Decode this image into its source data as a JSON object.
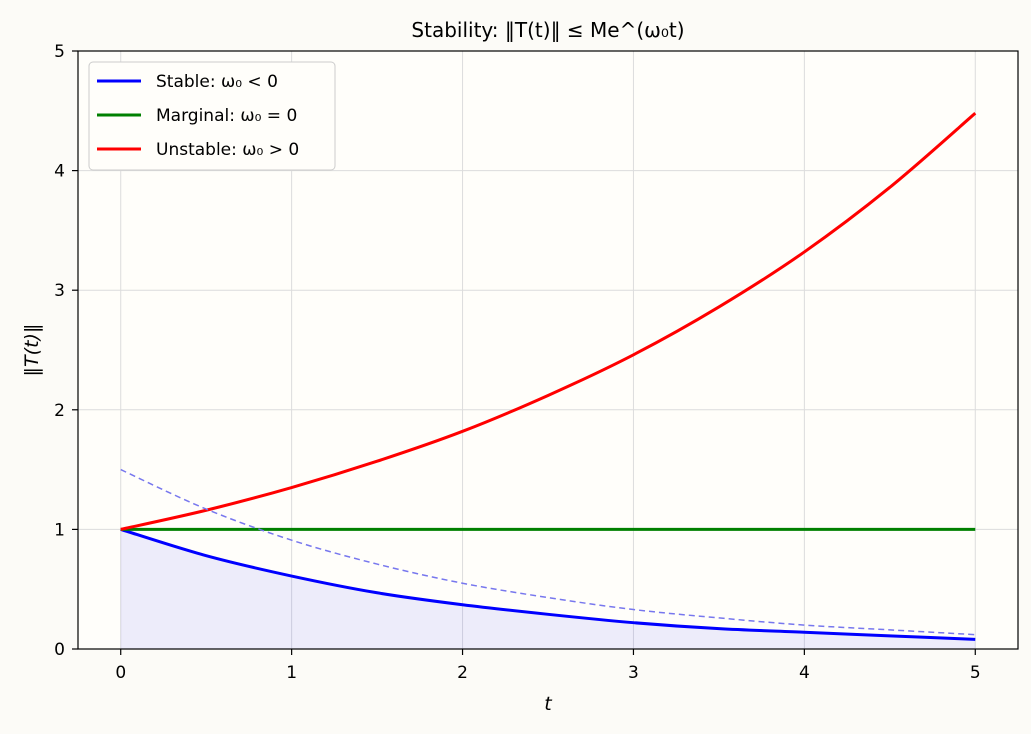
{
  "title": "Stability: ‖T(t)‖ ≤ Me^(ω₀t)",
  "chart_data": {
    "type": "line",
    "title": "Stability: ‖T(t)‖ ≤ Me^(ω₀t)",
    "xlabel": "t",
    "ylabel": "‖T(t)‖",
    "xlim": [
      -0.25,
      5.25
    ],
    "ylim": [
      0,
      5
    ],
    "xticks": [
      "0",
      "1",
      "2",
      "3",
      "4",
      "5"
    ],
    "yticks": [
      "0",
      "1",
      "2",
      "3",
      "4",
      "5"
    ],
    "grid": true,
    "legend_position": "upper-left",
    "series": [
      {
        "name": "Stable: ω₀ < 0",
        "color": "#0000ff",
        "style": "solid",
        "fill_below": true,
        "x": [
          0,
          0.5,
          1,
          1.5,
          2,
          2.5,
          3,
          3.5,
          4,
          4.5,
          5
        ],
        "y": [
          1.0,
          0.78,
          0.61,
          0.47,
          0.37,
          0.29,
          0.22,
          0.17,
          0.14,
          0.11,
          0.08
        ]
      },
      {
        "name": "Marginal: ω₀ = 0",
        "color": "#008000",
        "style": "solid",
        "x": [
          0,
          0.5,
          1,
          1.5,
          2,
          2.5,
          3,
          3.5,
          4,
          4.5,
          5
        ],
        "y": [
          1,
          1,
          1,
          1,
          1,
          1,
          1,
          1,
          1,
          1,
          1
        ]
      },
      {
        "name": "Unstable: ω₀ > 0",
        "color": "#ff0000",
        "style": "solid",
        "x": [
          0,
          0.5,
          1,
          1.5,
          2,
          2.5,
          3,
          3.5,
          4,
          4.5,
          5
        ],
        "y": [
          1.0,
          1.16,
          1.35,
          1.57,
          1.82,
          2.12,
          2.46,
          2.86,
          3.32,
          3.86,
          4.48
        ]
      },
      {
        "color": "#7777ee",
        "style": "dashed",
        "x": [
          0,
          0.5,
          1,
          1.5,
          2,
          2.5,
          3,
          3.5,
          4,
          4.5,
          5
        ],
        "y": [
          1.5,
          1.17,
          0.91,
          0.71,
          0.55,
          0.43,
          0.33,
          0.26,
          0.2,
          0.16,
          0.12
        ]
      }
    ]
  }
}
